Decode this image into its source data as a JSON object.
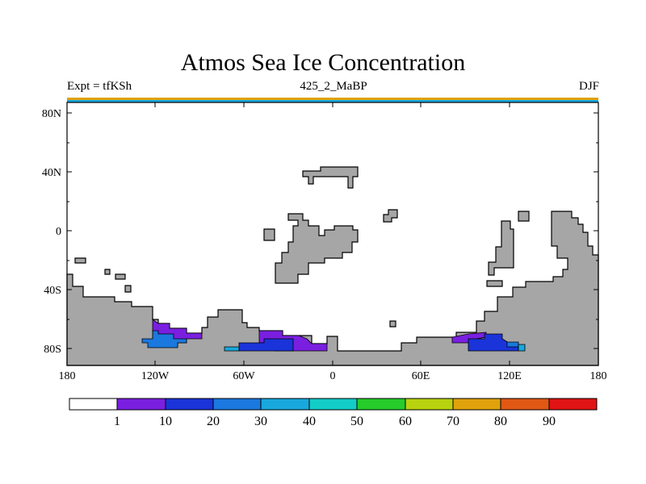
{
  "title": "Atmos Sea Ice Concentration",
  "subtitle": {
    "left": "Expt = tfKSh",
    "center": "425_2_MaBP",
    "right": "DJF"
  },
  "axes": {
    "x_labels": [
      "180",
      "120W",
      "60W",
      "0",
      "60E",
      "120E",
      "180"
    ],
    "y_labels": [
      "80N",
      "40N",
      "0",
      "40S",
      "80S"
    ]
  },
  "colorbar": {
    "labels": [
      "1",
      "10",
      "20",
      "30",
      "40",
      "50",
      "60",
      "70",
      "80",
      "90"
    ],
    "colors": [
      "#ffffff",
      "#7a1fe0",
      "#1a34d9",
      "#1a78de",
      "#18a8dd",
      "#12cdc6",
      "#25cc2a",
      "#b9d20f",
      "#e0a20c",
      "#e05814",
      "#e01414"
    ]
  },
  "colors": {
    "land": "#a6a6a6",
    "ice_1_10": "#7a1fe0",
    "ice_10_20": "#1a34d9",
    "ice_20_30": "#1a78de",
    "ice_30_40": "#18a8dd"
  }
}
